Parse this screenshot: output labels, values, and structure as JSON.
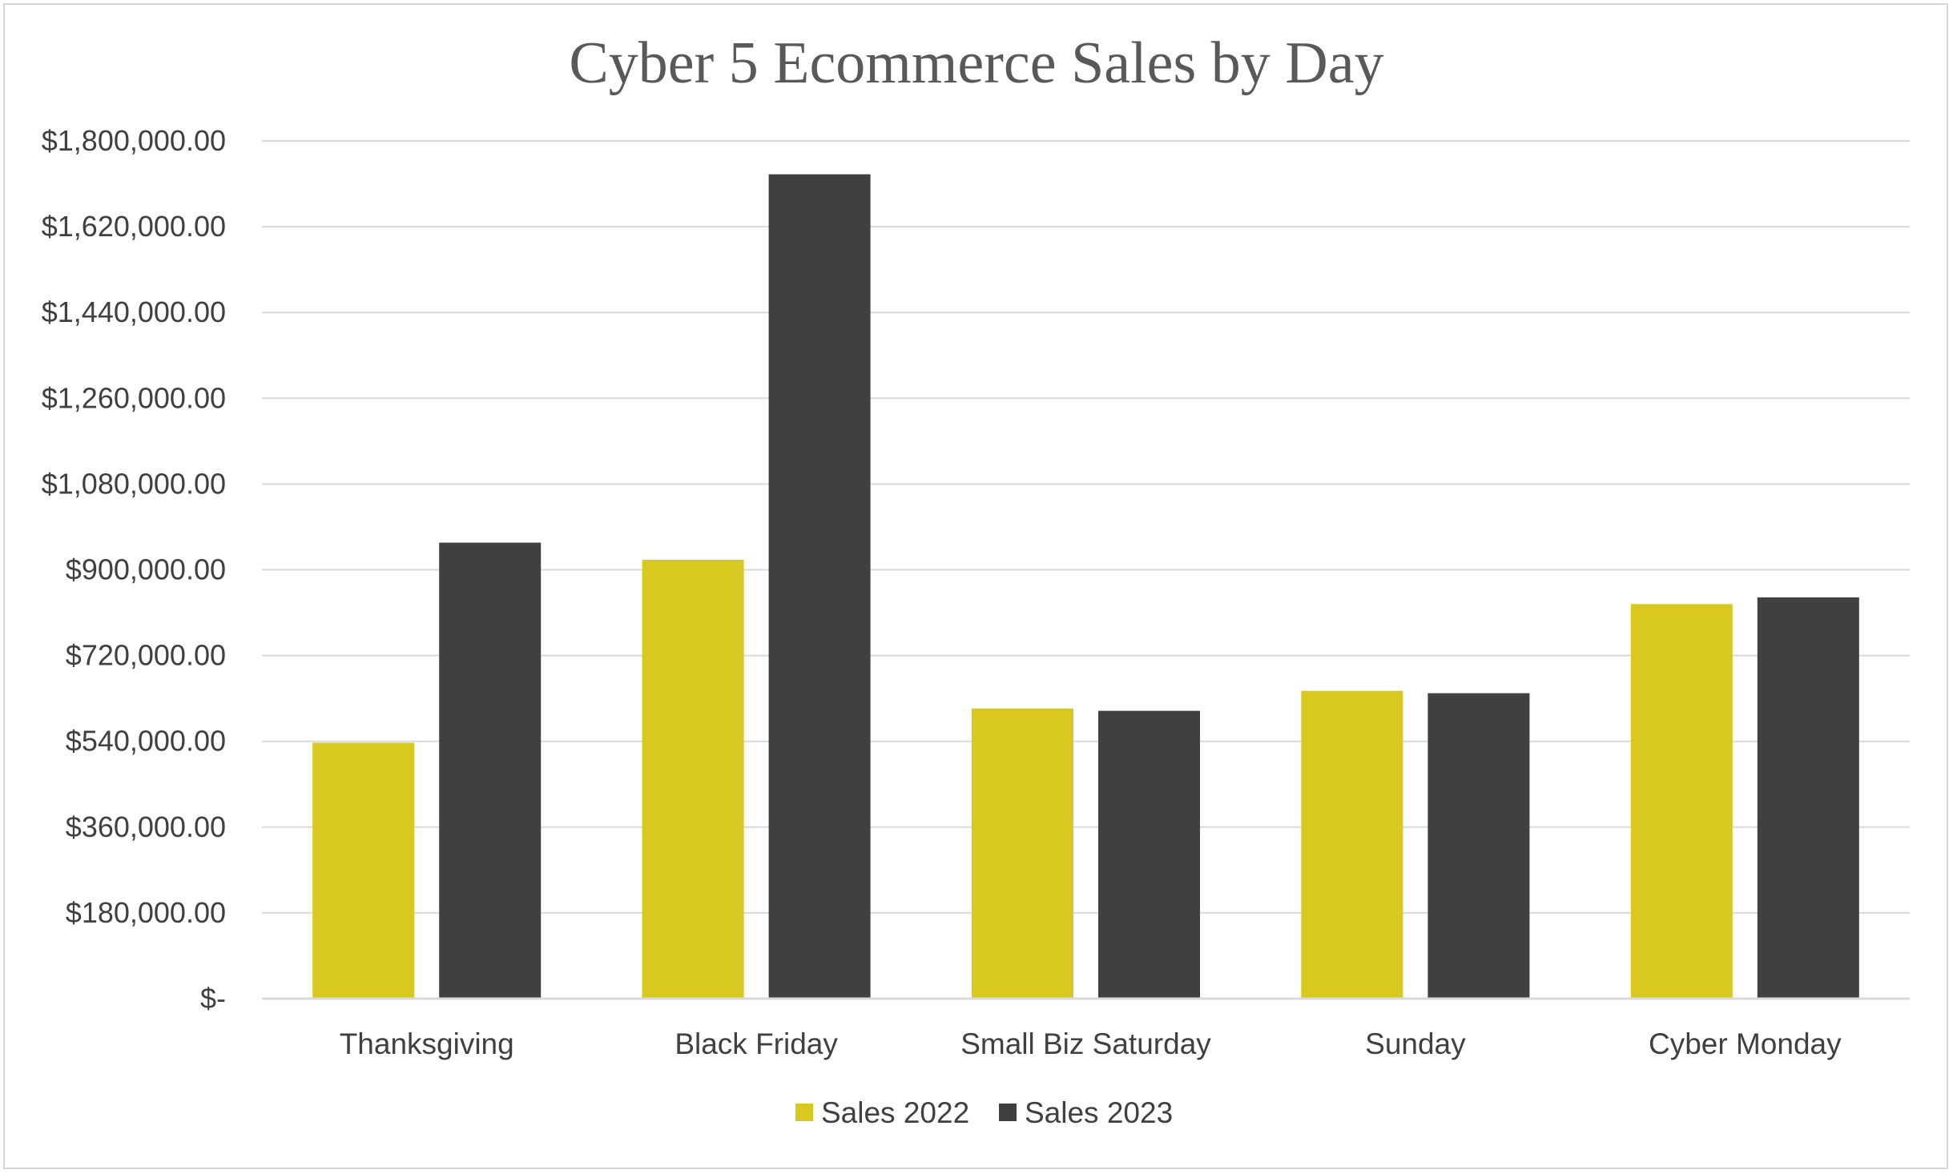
{
  "chart_data": {
    "type": "bar",
    "title": "Cyber 5 Ecommerce Sales by Day",
    "xlabel": "",
    "ylabel": "",
    "categories": [
      "Thanksgiving",
      "Black Friday",
      "Small Biz Saturday",
      "Sunday",
      "Cyber Monday"
    ],
    "series": [
      {
        "name": "Sales 2022",
        "color": "#d8c820",
        "values": [
          537000,
          921000,
          609000,
          646000,
          828000
        ]
      },
      {
        "name": "Sales 2023",
        "color": "#404040",
        "values": [
          957000,
          1730000,
          604000,
          641000,
          842000
        ]
      }
    ],
    "ylim": [
      0,
      1800000
    ],
    "ytick_values": [
      0,
      180000,
      360000,
      540000,
      720000,
      900000,
      1080000,
      1260000,
      1440000,
      1620000,
      1800000
    ],
    "ytick_labels": [
      "$-",
      "$180,000.00",
      "$360,000.00",
      "$540,000.00",
      "$720,000.00",
      "$900,000.00",
      "$1,080,000.00",
      "$1,260,000.00",
      "$1,440,000.00",
      "$1,620,000.00",
      "$1,800,000.00"
    ],
    "grid": true,
    "legend_position": "bottom"
  }
}
